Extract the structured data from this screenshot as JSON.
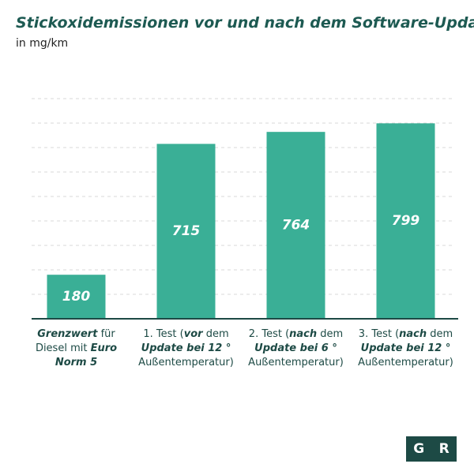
{
  "chart_data": {
    "type": "bar",
    "title": "Stickoxidemissionen vor und nach dem Software-Update",
    "subtitle": "in mg/km",
    "categories": [
      [
        {
          "text": "Grenzwert",
          "bold": true
        },
        {
          "text": " für Diesel mit ",
          "bold": false
        },
        {
          "text": "Euro Norm 5",
          "bold": true
        }
      ],
      [
        {
          "text": "1. Test (",
          "bold": false
        },
        {
          "text": "vor",
          "bold": true
        },
        {
          "text": " dem ",
          "bold": false
        },
        {
          "text": "Update bei 12 °",
          "bold": true
        },
        {
          "text": " Außentemperatur)",
          "bold": false
        }
      ],
      [
        {
          "text": "2. Test (",
          "bold": false
        },
        {
          "text": "nach",
          "bold": true
        },
        {
          "text": " dem ",
          "bold": false
        },
        {
          "text": "Update bei 6 °",
          "bold": true
        },
        {
          "text": " Außentemperatur)",
          "bold": false
        }
      ],
      [
        {
          "text": "3. Test (",
          "bold": false
        },
        {
          "text": "nach",
          "bold": true
        },
        {
          "text": " dem ",
          "bold": false
        },
        {
          "text": "Update bei 12 °",
          "bold": true
        },
        {
          "text": " Außentemperatur)",
          "bold": false
        }
      ]
    ],
    "values": [
      180,
      715,
      764,
      799
    ],
    "color": "#3aaf96",
    "ylim": [
      0,
      900
    ],
    "yticks": [
      100,
      200,
      300,
      400,
      500,
      600,
      700,
      800,
      900
    ],
    "grid": true,
    "logo": [
      "G",
      "R"
    ]
  }
}
